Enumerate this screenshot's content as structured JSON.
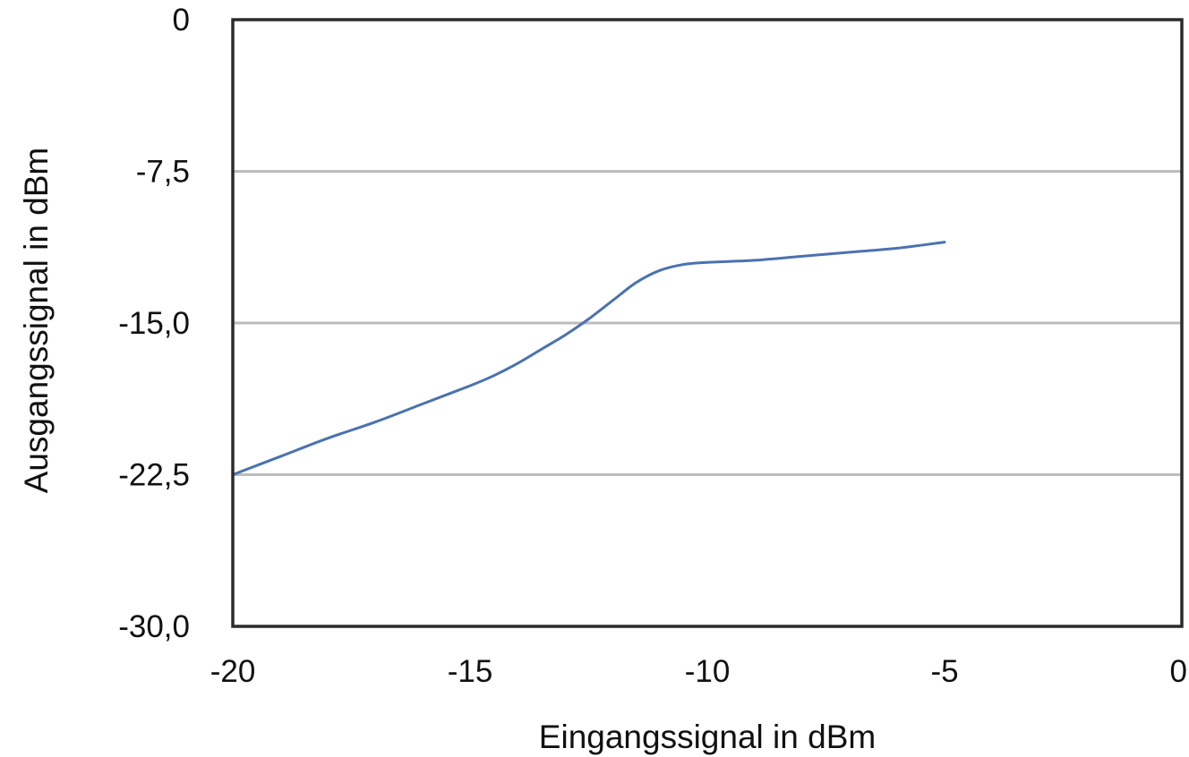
{
  "chart_data": {
    "type": "line",
    "title": "",
    "xlabel": "Eingangssignal in dBm",
    "ylabel": "Ausgangssignal in dBm",
    "xlim": [
      -20,
      0
    ],
    "ylim": [
      -30,
      0
    ],
    "x_ticks": [
      -20,
      -15,
      -10,
      -5,
      0
    ],
    "x_tick_labels": [
      "-20",
      "-15",
      "-10",
      "-5",
      "0"
    ],
    "y_ticks": [
      0,
      -7.5,
      -15,
      -22.5,
      -30
    ],
    "y_tick_labels": [
      "0",
      "-7,5",
      "-15,0",
      "-22,5",
      "-30,0"
    ],
    "grid": "horizontal",
    "legend": "none",
    "series": [
      {
        "color": "#4a72b0",
        "x": [
          -20,
          -19,
          -18,
          -17,
          -16,
          -15,
          -14.5,
          -14,
          -13.5,
          -13,
          -12.5,
          -12,
          -11.5,
          -11,
          -10.5,
          -10,
          -9,
          -8,
          -7,
          -6,
          -5
        ],
        "y": [
          -22.5,
          -21.6,
          -20.7,
          -19.9,
          -19.0,
          -18.1,
          -17.6,
          -17.0,
          -16.3,
          -15.6,
          -14.8,
          -13.9,
          -13.0,
          -12.4,
          -12.1,
          -12.0,
          -11.9,
          -11.7,
          -11.5,
          -11.3,
          -11.0
        ]
      }
    ]
  }
}
